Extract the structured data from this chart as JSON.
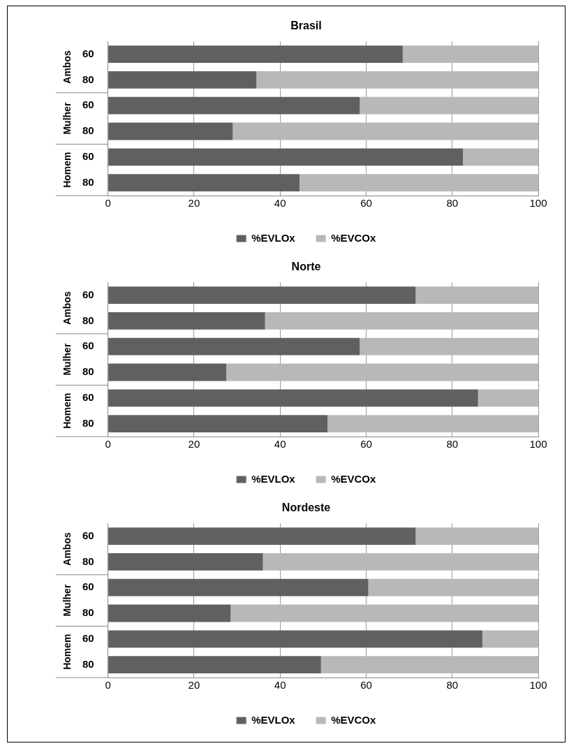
{
  "chart_data": [
    {
      "type": "bar",
      "orientation": "horizontal",
      "stacked": true,
      "title": "Brasil",
      "categories": [
        "60",
        "80",
        "60",
        "80",
        "60",
        "80"
      ],
      "annotations": [
        "Ambos",
        "Mulher",
        "Homem"
      ],
      "series": [
        {
          "name": "%EVLOx",
          "color": "#606060",
          "values": [
            68.5,
            34.5,
            58.5,
            29,
            82.5,
            44.5
          ]
        },
        {
          "name": "%EVCOx",
          "color": "#b8b8b8",
          "values": [
            31.5,
            65.5,
            41.5,
            71,
            17.5,
            55.5
          ]
        }
      ],
      "xlim": [
        0,
        100
      ],
      "xticks": [
        0,
        20,
        40,
        60,
        80,
        100
      ],
      "grid": "x",
      "legend": "bottom"
    },
    {
      "type": "bar",
      "orientation": "horizontal",
      "stacked": true,
      "title": "Norte",
      "categories": [
        "60",
        "80",
        "60",
        "80",
        "60",
        "80"
      ],
      "annotations": [
        "Ambos",
        "Mulher",
        "Homem"
      ],
      "series": [
        {
          "name": "%EVLOx",
          "color": "#606060",
          "values": [
            71.5,
            36.5,
            58.5,
            27.5,
            86,
            51
          ]
        },
        {
          "name": "%EVCOx",
          "color": "#b8b8b8",
          "values": [
            28.5,
            63.5,
            41.5,
            72.5,
            14,
            49
          ]
        }
      ],
      "xlim": [
        0,
        100
      ],
      "xticks": [
        0,
        20,
        40,
        60,
        80,
        100
      ],
      "grid": "x",
      "legend": "bottom"
    },
    {
      "type": "bar",
      "orientation": "horizontal",
      "stacked": true,
      "title": "Nordeste",
      "categories": [
        "60",
        "80",
        "60",
        "80",
        "60",
        "80"
      ],
      "annotations": [
        "Ambos",
        "Mulher",
        "Homem"
      ],
      "series": [
        {
          "name": "%EVLOx",
          "color": "#606060",
          "values": [
            71.5,
            36,
            60.5,
            28.5,
            87,
            49.5
          ]
        },
        {
          "name": "%EVCOx",
          "color": "#b8b8b8",
          "values": [
            28.5,
            64,
            39.5,
            71.5,
            13,
            50.5
          ]
        }
      ],
      "xlim": [
        0,
        100
      ],
      "xticks": [
        0,
        20,
        40,
        60,
        80,
        100
      ],
      "grid": "x",
      "legend": "bottom"
    }
  ]
}
